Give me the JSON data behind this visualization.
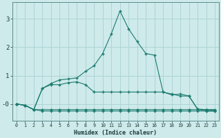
{
  "xlabel": "Humidex (Indice chaleur)",
  "background_color": "#ceeaea",
  "grid_color": "#aed4d4",
  "line_color": "#1a7a6e",
  "xlim": [
    -0.5,
    23.5
  ],
  "ylim": [
    -0.6,
    3.6
  ],
  "yticks": [
    0,
    1,
    2,
    3
  ],
  "ytick_labels": [
    "-0",
    "1",
    "2",
    "3"
  ],
  "xticks": [
    0,
    1,
    2,
    3,
    4,
    5,
    6,
    7,
    8,
    9,
    10,
    11,
    12,
    13,
    14,
    15,
    16,
    17,
    18,
    19,
    20,
    21,
    22,
    23
  ],
  "series": [
    {
      "x": [
        0,
        1,
        2,
        3,
        4,
        5,
        6,
        7,
        8,
        9,
        10,
        11,
        12,
        13,
        14,
        15,
        16,
        17,
        18,
        19,
        20,
        21,
        22,
        23
      ],
      "y": [
        0.0,
        -0.05,
        -0.2,
        -0.2,
        -0.2,
        -0.2,
        -0.2,
        -0.2,
        -0.2,
        -0.2,
        -0.2,
        -0.2,
        -0.2,
        -0.2,
        -0.2,
        -0.2,
        -0.2,
        -0.2,
        -0.2,
        -0.2,
        -0.2,
        -0.2,
        -0.2,
        -0.2
      ]
    },
    {
      "x": [
        0,
        1,
        2,
        3,
        4,
        5,
        6,
        7,
        8,
        9,
        10,
        11,
        12,
        13,
        14,
        15,
        16,
        17,
        18,
        19,
        20,
        21,
        22,
        23
      ],
      "y": [
        0.0,
        -0.05,
        -0.2,
        -0.25,
        -0.25,
        -0.25,
        -0.25,
        -0.25,
        -0.25,
        -0.25,
        -0.25,
        -0.25,
        -0.25,
        -0.25,
        -0.25,
        -0.25,
        -0.25,
        -0.25,
        -0.25,
        -0.25,
        -0.25,
        -0.25,
        -0.25,
        -0.25
      ]
    },
    {
      "x": [
        0,
        1,
        2,
        3,
        4,
        5,
        6,
        7,
        8,
        9,
        10,
        11,
        12,
        13,
        14,
        15,
        16,
        17,
        18,
        19,
        20,
        21,
        22,
        23
      ],
      "y": [
        0.0,
        -0.05,
        -0.2,
        0.55,
        0.68,
        0.68,
        0.75,
        0.78,
        0.68,
        0.42,
        0.42,
        0.42,
        0.42,
        0.42,
        0.42,
        0.42,
        0.42,
        0.42,
        0.35,
        0.28,
        0.28,
        -0.18,
        -0.2,
        -0.22
      ]
    },
    {
      "x": [
        0,
        1,
        2,
        3,
        4,
        5,
        6,
        7,
        8,
        9,
        10,
        11,
        12,
        13,
        14,
        15,
        16,
        17,
        18,
        19,
        20,
        21,
        22,
        23
      ],
      "y": [
        0.0,
        -0.05,
        -0.2,
        0.55,
        0.72,
        0.85,
        0.88,
        0.92,
        1.15,
        1.35,
        1.78,
        2.48,
        3.28,
        2.65,
        2.2,
        1.78,
        1.72,
        0.42,
        0.32,
        0.35,
        0.28,
        -0.18,
        -0.25,
        -0.25
      ]
    }
  ]
}
